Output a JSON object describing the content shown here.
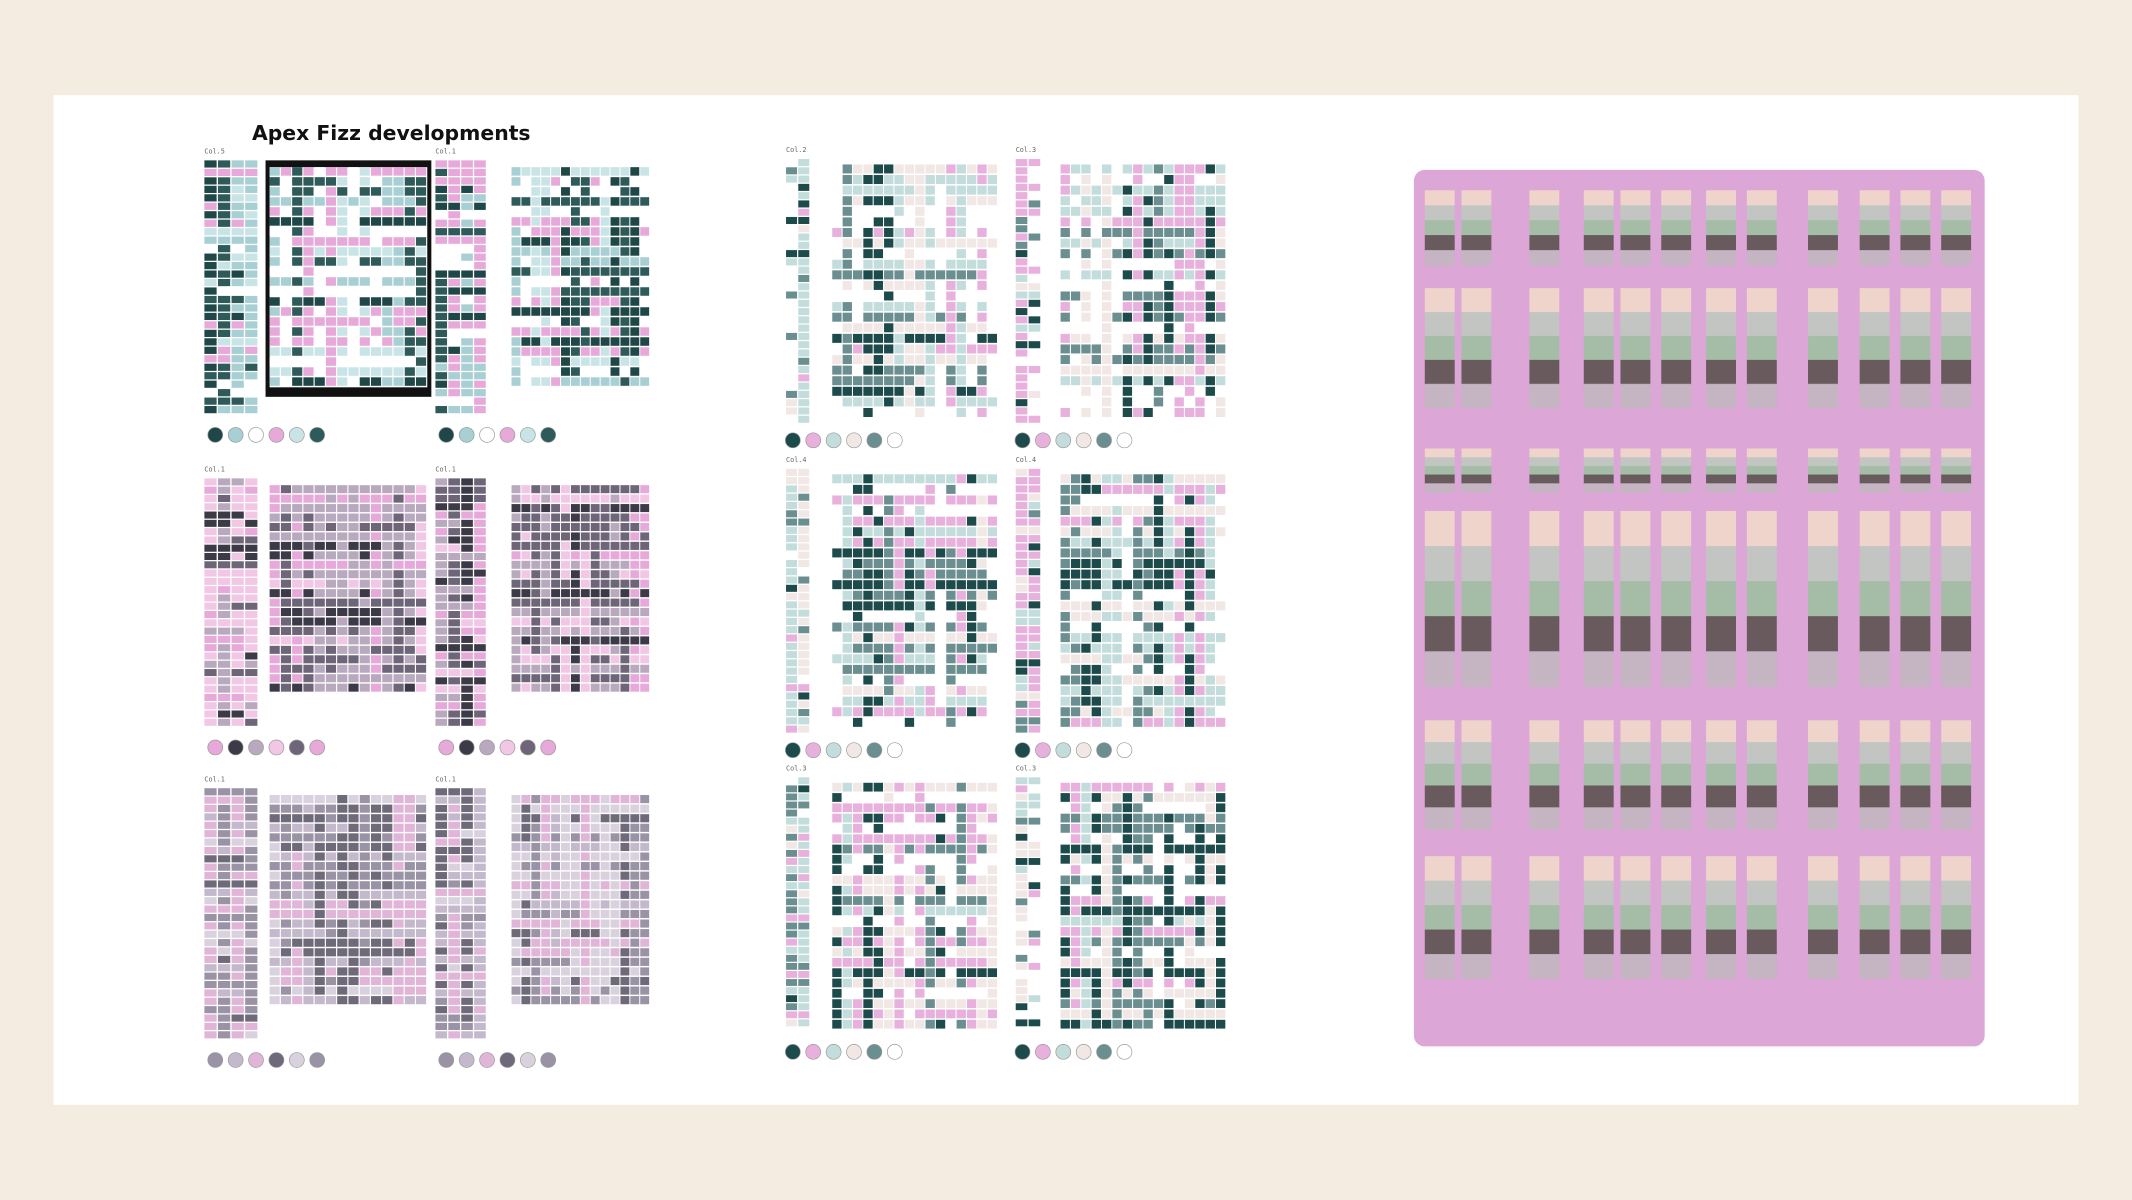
{
  "header": {
    "title": "Apex Fizz developments"
  },
  "left_page": {
    "labels": [
      "Col.5",
      "Col.1",
      "Col.1",
      "Col.1",
      "Col.1",
      "Col.1"
    ]
  },
  "middle_page": {
    "labels": [
      "Col.2",
      "Col.3",
      "Col.4",
      "Col.4",
      "Col.3",
      "Col.3"
    ]
  }
}
